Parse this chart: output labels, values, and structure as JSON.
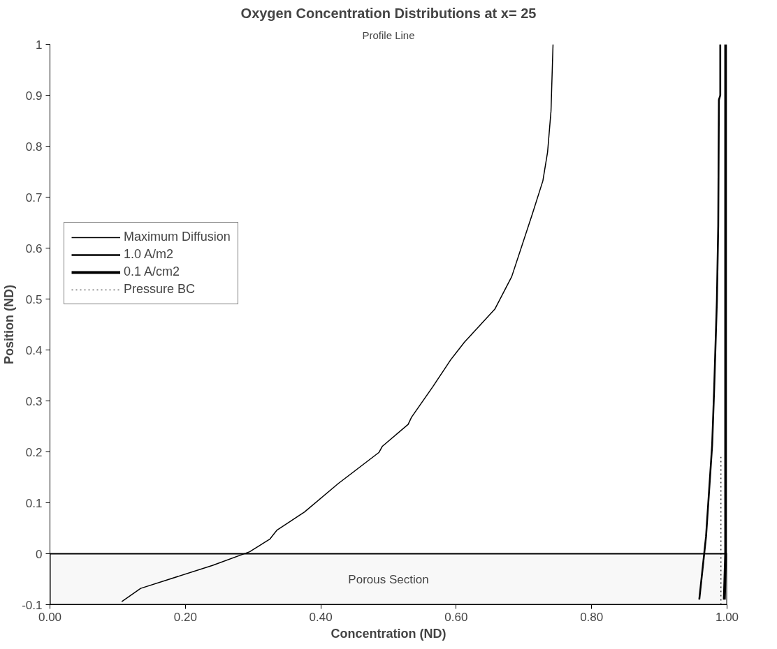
{
  "chart_data": {
    "type": "line",
    "title": "Oxygen Concentration Distributions at x= 25",
    "xlabel": "Concentration (ND)",
    "ylabel": "Position (ND)",
    "annotations": [
      "Profile Line"
    ],
    "series": [
      {
        "name": "Maximum Diffusion",
        "color": "#000000",
        "x": [
          0.106,
          0.134,
          0.24,
          0.295,
          0.325,
          0.335,
          0.376,
          0.426,
          0.486,
          0.491,
          0.529,
          0.534,
          0.566,
          0.592,
          0.612,
          0.657,
          0.682,
          0.712,
          0.728,
          0.735,
          0.74,
          0.743
        ],
        "values": [
          -0.094,
          -0.068,
          -0.023,
          0.004,
          0.029,
          0.046,
          0.082,
          0.138,
          0.199,
          0.211,
          0.254,
          0.268,
          0.329,
          0.381,
          0.415,
          0.48,
          0.544,
          0.665,
          0.732,
          0.789,
          0.869,
          1.0
        ]
      },
      {
        "name": "1.0 A/m2",
        "color": "#000000",
        "x": [
          0.959,
          0.969,
          0.978,
          0.981,
          0.985,
          0.987,
          0.988,
          0.99,
          0.99
        ],
        "values": [
          -0.09,
          0.034,
          0.213,
          0.324,
          0.496,
          0.644,
          0.891,
          0.9,
          1.0
        ]
      },
      {
        "name": "0.1 A/cm2",
        "color": "#000000",
        "x": [
          0.996,
          0.998,
          0.998
        ],
        "values": [
          -0.09,
          0.0,
          1.0
        ]
      },
      {
        "name": "Pressure BC",
        "color": "#000000",
        "line_style": "dotted",
        "x": [
          0.991,
          0.991
        ],
        "values": [
          -0.1,
          0.19
        ]
      }
    ],
    "bands": [
      {
        "axis": "y",
        "from": -0.1,
        "to": 0,
        "label": "Porous Section"
      }
    ],
    "xlim": [
      0,
      1
    ],
    "ylim": [
      -0.1,
      1
    ],
    "xticks": [
      {
        "value": 0,
        "label": "0.00"
      },
      {
        "value": 0.2,
        "label": "0.20"
      },
      {
        "value": 0.4,
        "label": "0.40"
      },
      {
        "value": 0.6,
        "label": "0.60"
      },
      {
        "value": 0.8,
        "label": "0.80"
      },
      {
        "value": 1,
        "label": "1.00"
      }
    ],
    "yticks": [
      -0.1,
      0,
      0.1,
      0.2,
      0.3,
      0.4,
      0.5,
      0.6,
      0.7,
      0.8,
      0.9,
      1
    ],
    "grid": false,
    "legend": "left",
    "marker": "none",
    "line_style": "solid"
  }
}
